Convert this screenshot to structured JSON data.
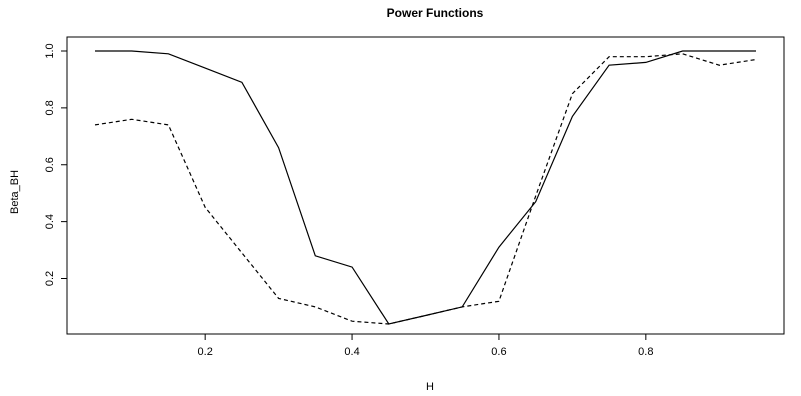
{
  "chart_data": {
    "type": "line",
    "title": "Power Functions",
    "xlabel": "H",
    "ylabel": "Beta_BH",
    "xlim": [
      0.05,
      0.95
    ],
    "ylim": [
      0.04,
      1.0
    ],
    "xticks": [
      0.2,
      0.4,
      0.6,
      0.8
    ],
    "yticks": [
      0.2,
      0.4,
      0.6,
      0.8,
      1.0
    ],
    "xtick_labels": [
      "0.2",
      "0.4",
      "0.6",
      "0.8"
    ],
    "ytick_labels": [
      "0.2",
      "0.4",
      "0.6",
      "0.8",
      "1.0"
    ],
    "grid": false,
    "legend": "none",
    "x": [
      0.05,
      0.1,
      0.15,
      0.2,
      0.25,
      0.3,
      0.35,
      0.4,
      0.45,
      0.5,
      0.55,
      0.6,
      0.65,
      0.7,
      0.75,
      0.8,
      0.85,
      0.9,
      0.95
    ],
    "series": [
      {
        "line_style": "solid",
        "color": "#000000",
        "values": [
          1.0,
          1.0,
          0.99,
          0.94,
          0.89,
          0.66,
          0.28,
          0.24,
          0.04,
          0.07,
          0.1,
          0.31,
          0.47,
          0.77,
          0.95,
          0.96,
          1.0,
          1.0,
          1.0
        ]
      },
      {
        "line_style": "dashed",
        "color": "#000000",
        "values": [
          0.74,
          0.76,
          0.74,
          0.45,
          0.29,
          0.13,
          0.1,
          0.05,
          0.04,
          0.07,
          0.1,
          0.12,
          0.49,
          0.85,
          0.98,
          0.98,
          0.99,
          0.95,
          0.97
        ]
      }
    ]
  }
}
